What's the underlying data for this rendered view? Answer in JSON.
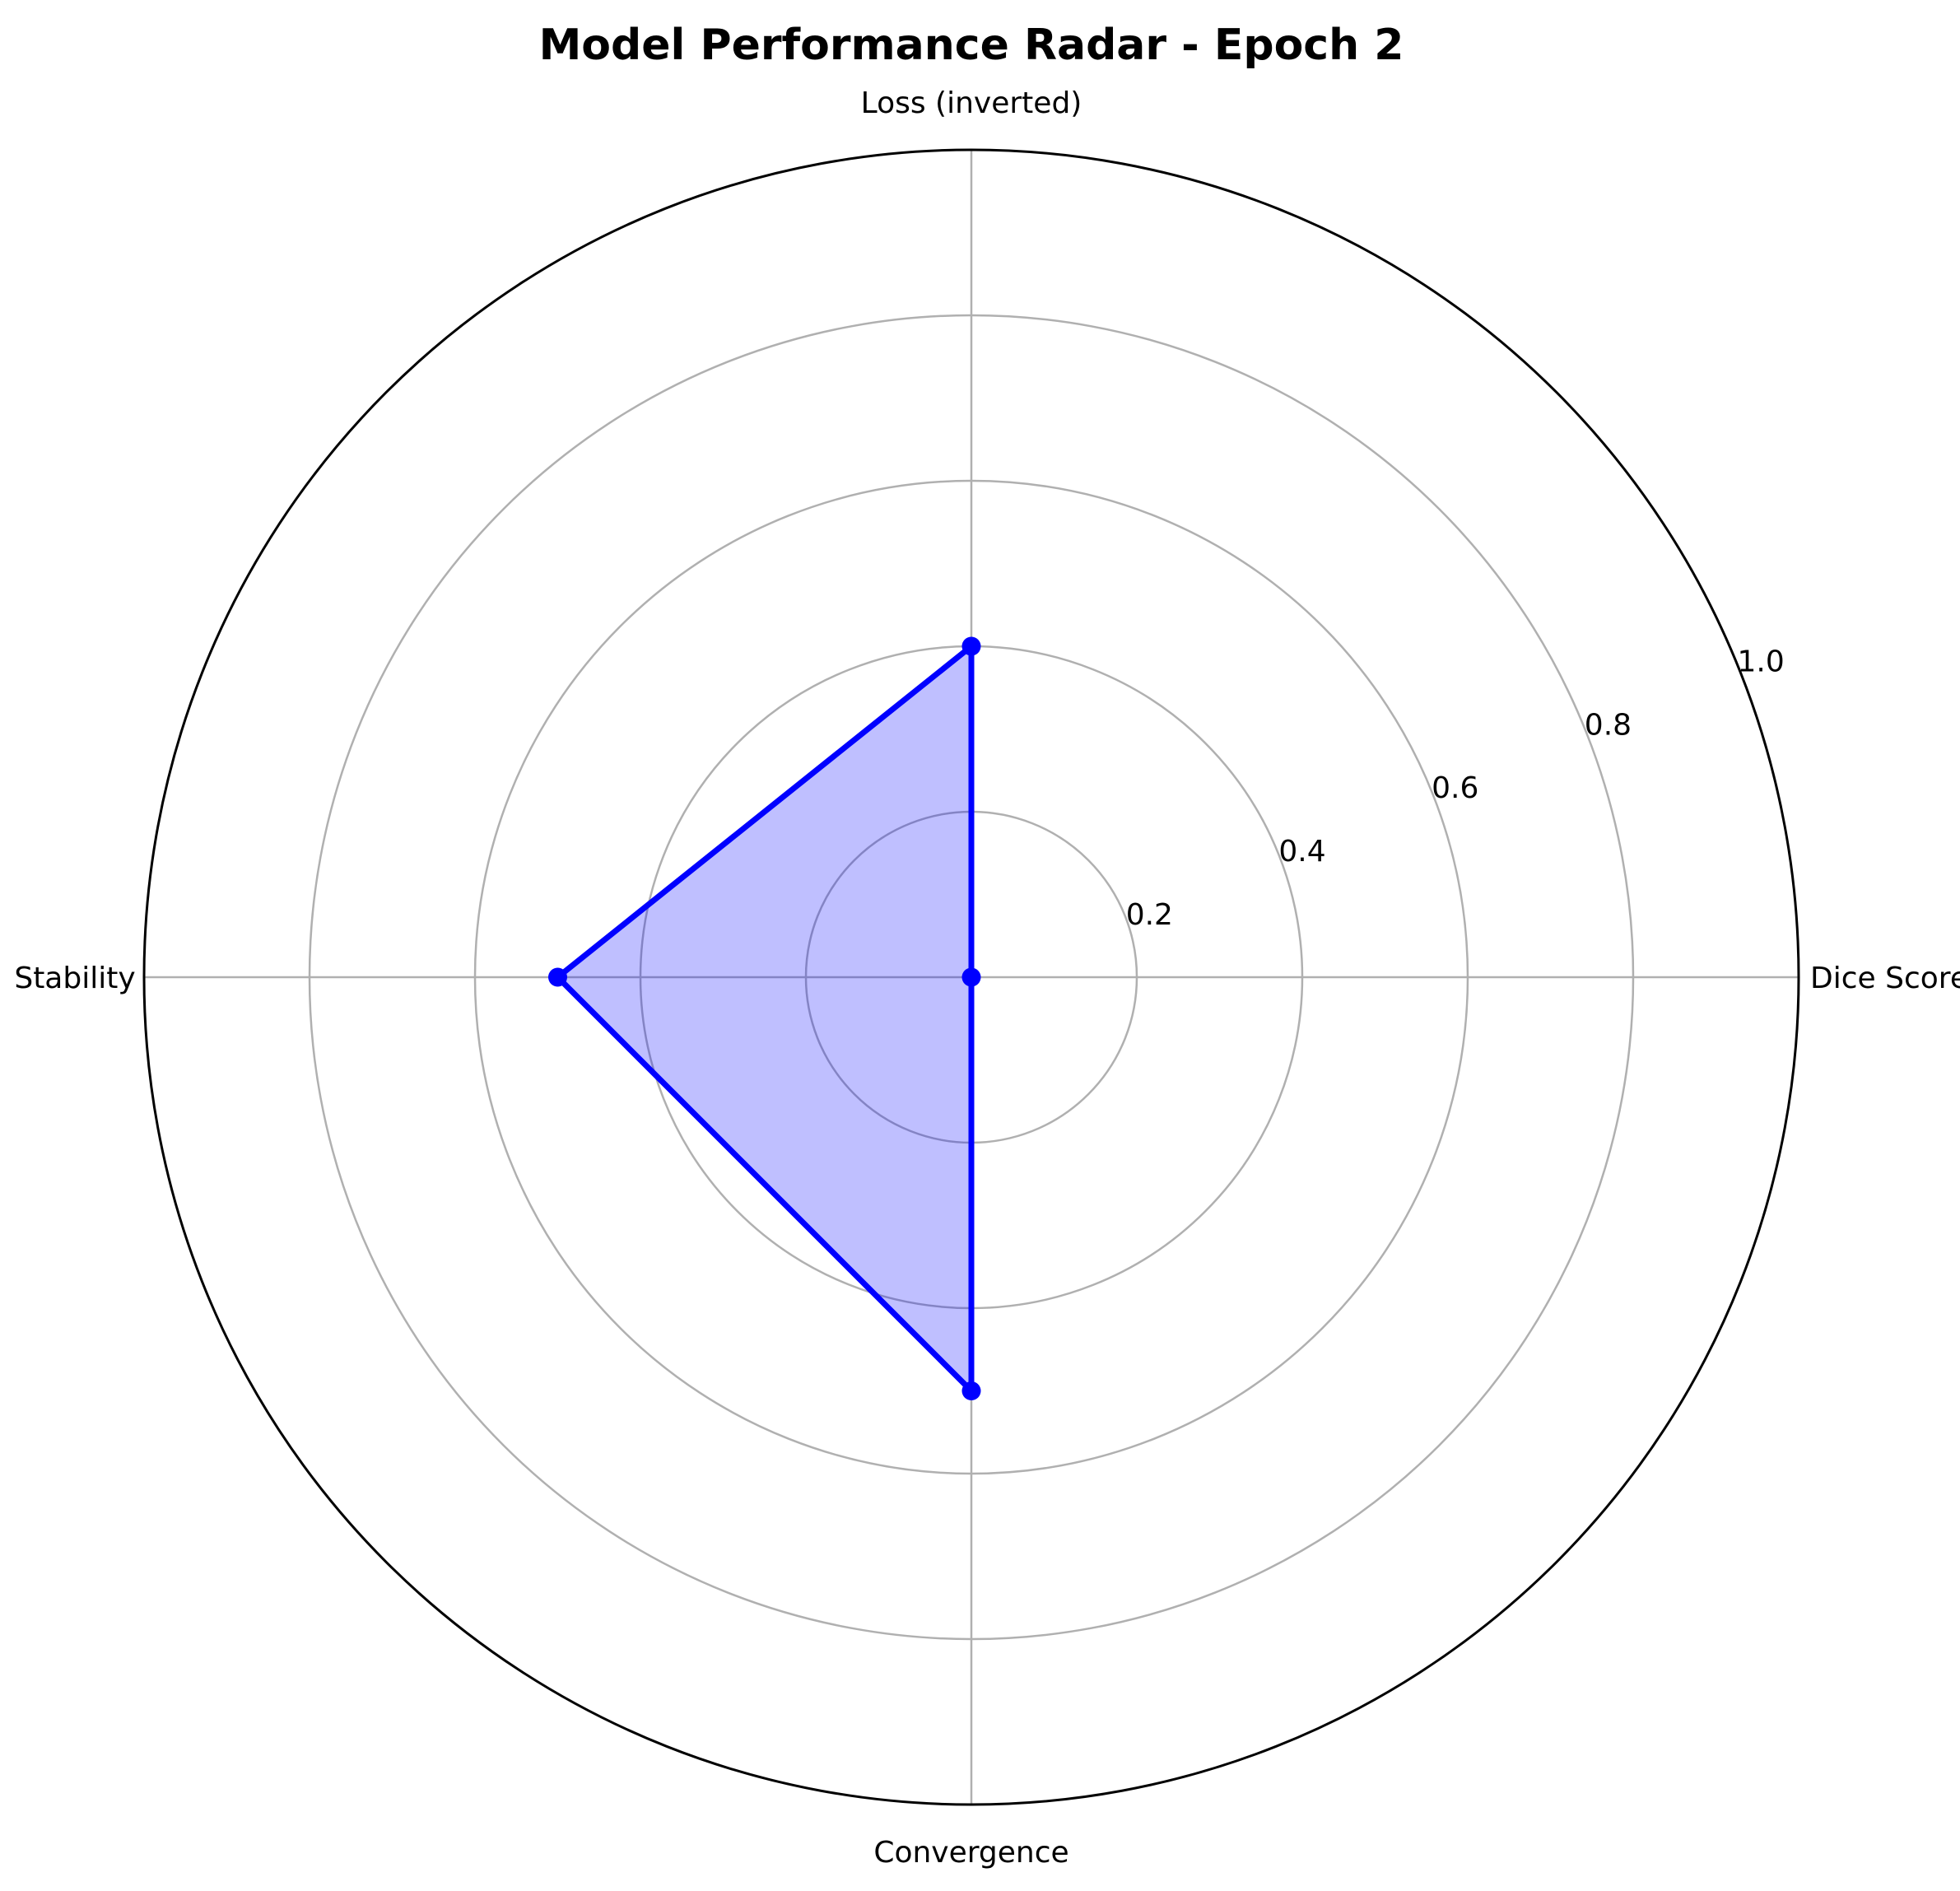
{
  "chart_data": {
    "type": "radar",
    "title": "Model Performance Radar - Epoch 2",
    "categories": [
      "Dice Score",
      "Loss (inverted)",
      "Stability",
      "Convergence"
    ],
    "series": [
      {
        "values": [
          0.0,
          0.4,
          0.5,
          0.5
        ],
        "color": "#0000ff",
        "fill_color": "#0000ff",
        "fill_opacity": 0.25
      }
    ],
    "rlim": [
      0,
      1.0
    ],
    "r_ticks": [
      "0.2",
      "0.4",
      "0.6",
      "0.8",
      "1.0"
    ],
    "grid": true,
    "legend": false
  }
}
